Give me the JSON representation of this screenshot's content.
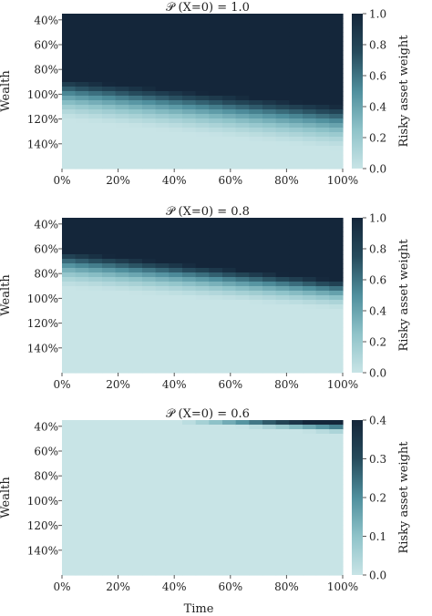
{
  "figure": {
    "xlabel": "Time",
    "ylabel": "Wealth",
    "colorbar_label": "Risky asset weight",
    "colormap": [
      "#c8e4e6",
      "#8fc3c9",
      "#4f8f9d",
      "#264b5c",
      "#14263a"
    ]
  },
  "chart_data": [
    {
      "type": "heatmap",
      "title": "𝒫 (X=0) = 1.0",
      "xlabel": "",
      "ylabel": "Wealth",
      "x_tick_labels": [
        "0%",
        "20%",
        "40%",
        "60%",
        "80%",
        "100%"
      ],
      "y_tick_labels": [
        "40%",
        "60%",
        "80%",
        "100%",
        "120%",
        "140%"
      ],
      "x_range": [
        0,
        100
      ],
      "wealth_range": [
        35,
        160
      ],
      "colorbar": {
        "label": "Risky asset weight",
        "min": 0.0,
        "max": 1.0,
        "ticks": [
          "0.0",
          "0.2",
          "0.4",
          "0.6",
          "0.8",
          "1.0"
        ]
      },
      "boundary_wealth_at_t0": [
        88,
        121
      ],
      "boundary_wealth_at_t100": [
        110,
        146
      ],
      "max_weight": 1.0
    },
    {
      "type": "heatmap",
      "title": "𝒫 (X=0) = 0.8",
      "xlabel": "",
      "ylabel": "Wealth",
      "x_tick_labels": [
        "0%",
        "20%",
        "40%",
        "60%",
        "80%",
        "100%"
      ],
      "y_tick_labels": [
        "40%",
        "60%",
        "80%",
        "100%",
        "120%",
        "140%"
      ],
      "x_range": [
        0,
        100
      ],
      "wealth_range": [
        35,
        160
      ],
      "colorbar": {
        "label": "Risky asset weight",
        "min": 0.0,
        "max": 1.0,
        "ticks": [
          "0.0",
          "0.2",
          "0.4",
          "0.6",
          "0.8",
          "1.0"
        ]
      },
      "boundary_wealth_at_t0": [
        62,
        92
      ],
      "boundary_wealth_at_t100": [
        86,
        110
      ],
      "max_weight": 1.0
    },
    {
      "type": "heatmap",
      "title": "𝒫 (X=0) = 0.6",
      "xlabel": "Time",
      "ylabel": "Wealth",
      "x_tick_labels": [
        "0%",
        "20%",
        "40%",
        "60%",
        "80%",
        "100%"
      ],
      "y_tick_labels": [
        "40%",
        "60%",
        "80%",
        "100%",
        "120%",
        "140%"
      ],
      "x_range": [
        0,
        100
      ],
      "wealth_range": [
        35,
        160
      ],
      "colorbar": {
        "label": "Risky asset weight",
        "min": 0.0,
        "max": 0.4,
        "ticks": [
          "0.0",
          "0.1",
          "0.2",
          "0.3",
          "0.4"
        ]
      },
      "boundary_wealth_at_t0": [
        28,
        30
      ],
      "boundary_wealth_at_t100": [
        38,
        47
      ],
      "max_weight": 0.4
    }
  ]
}
